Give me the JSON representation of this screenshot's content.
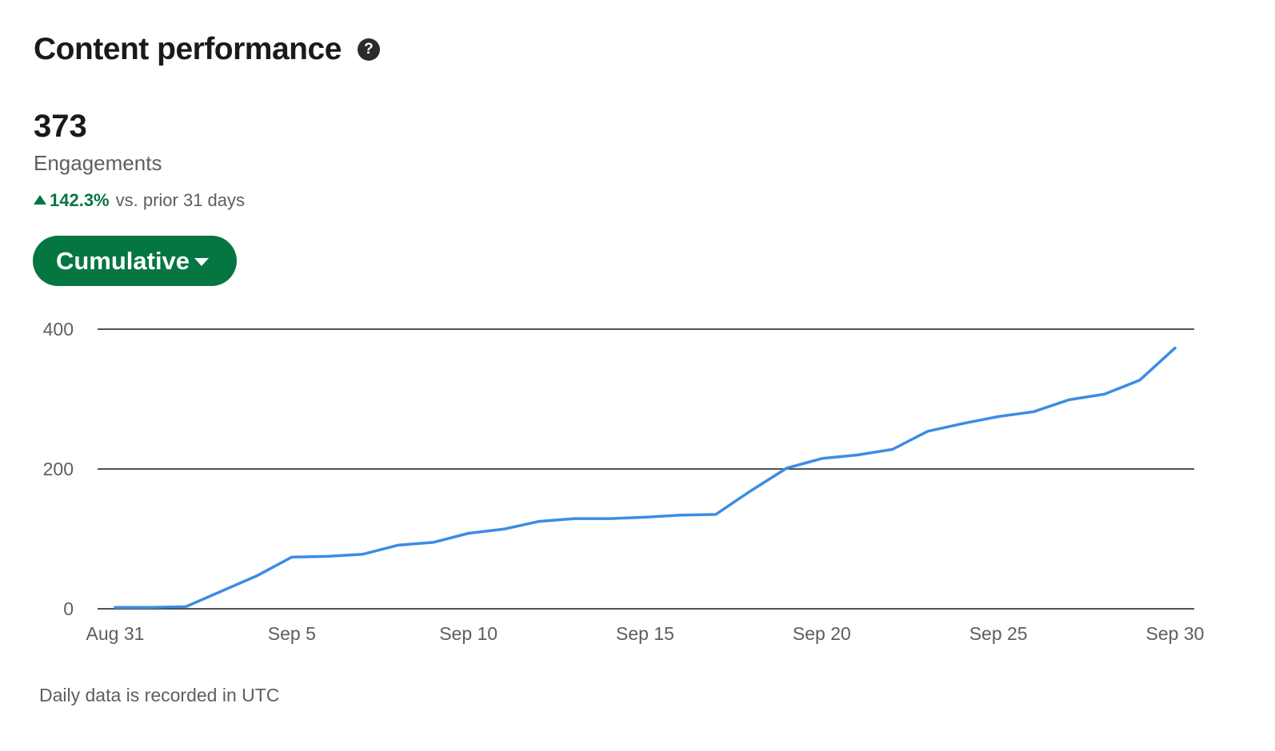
{
  "header": {
    "title": "Content performance",
    "help_icon": "question-circle-icon"
  },
  "metric": {
    "value": "373",
    "label": "Engagements",
    "change_pct": "142.3%",
    "change_text": "vs. prior 31 days",
    "change_direction": "up"
  },
  "view_selector": {
    "label": "Cumulative"
  },
  "footnote": "Daily data is recorded in UTC",
  "colors": {
    "line": "#3b8de3",
    "accent": "#057642",
    "grid": "#1a1a1a",
    "text_muted": "#5e5e5e"
  },
  "chart_data": {
    "type": "line",
    "title": "",
    "xlabel": "",
    "ylabel": "",
    "ylim": [
      0,
      400
    ],
    "yticks": [
      0,
      200,
      400
    ],
    "x_tick_labels": [
      "Aug 31",
      "Sep 5",
      "Sep 10",
      "Sep 15",
      "Sep 20",
      "Sep 25",
      "Sep 30"
    ],
    "x_tick_dates": [
      "Aug 31",
      "Sep 5",
      "Sep 10",
      "Sep 15",
      "Sep 20",
      "Sep 25",
      "Sep 30"
    ],
    "grid": true,
    "x": [
      "Aug 31",
      "Sep 1",
      "Sep 2",
      "Sep 3",
      "Sep 4",
      "Sep 5",
      "Sep 6",
      "Sep 7",
      "Sep 8",
      "Sep 9",
      "Sep 10",
      "Sep 11",
      "Sep 12",
      "Sep 13",
      "Sep 14",
      "Sep 15",
      "Sep 16",
      "Sep 17",
      "Sep 18",
      "Sep 19",
      "Sep 20",
      "Sep 21",
      "Sep 22",
      "Sep 23",
      "Sep 24",
      "Sep 25",
      "Sep 26",
      "Sep 27",
      "Sep 28",
      "Sep 29",
      "Sep 30"
    ],
    "series": [
      {
        "values": [
          2,
          2,
          3,
          25,
          47,
          74,
          75,
          78,
          91,
          95,
          108,
          114,
          125,
          129,
          129,
          131,
          134,
          135,
          169,
          201,
          215,
          220,
          228,
          254,
          265,
          275,
          282,
          299,
          307,
          327,
          373
        ]
      }
    ]
  }
}
